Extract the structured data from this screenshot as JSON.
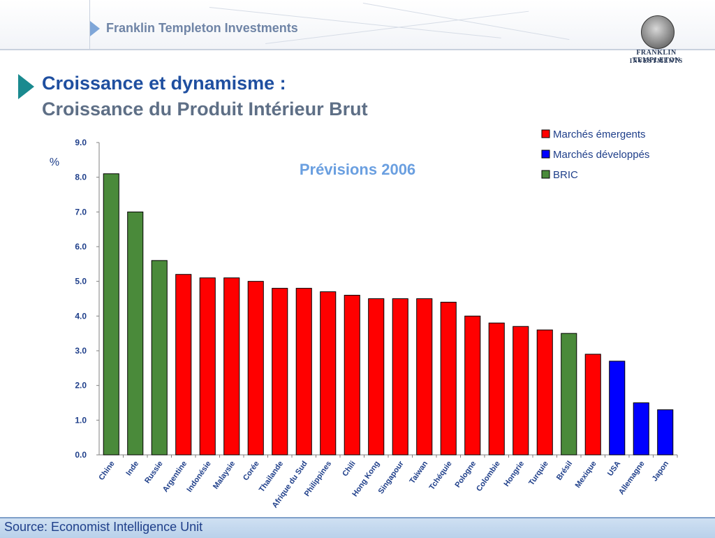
{
  "header": {
    "brand": "Franklin Templeton Investments",
    "logo_line1": "FRANKLIN TEMPLETON",
    "logo_line2": "INVESTMENTS"
  },
  "title": {
    "line1": "Croissance et dynamisme :",
    "line2": "Croissance du Produit Intérieur Brut"
  },
  "source": "Source: Economist Intelligence Unit",
  "colors": {
    "emerging": "#ff0000",
    "developed": "#0000ff",
    "bric": "#4a8a3a"
  },
  "chart_data": {
    "type": "bar",
    "subtitle": "Prévisions 2006",
    "ylabel": "%",
    "ylim": [
      0,
      9
    ],
    "yticks": [
      "0.0",
      "1.0",
      "2.0",
      "3.0",
      "4.0",
      "5.0",
      "6.0",
      "7.0",
      "8.0",
      "9.0"
    ],
    "legend_position": "top-right",
    "legend": [
      {
        "name": "Marchés émergents",
        "group": "emerging"
      },
      {
        "name": "Marchés développés",
        "group": "developed"
      },
      {
        "name": "BRIC",
        "group": "bric"
      }
    ],
    "categories": [
      "Chine",
      "Inde",
      "Russie",
      "Argentine",
      "Indonésie",
      "Malaysie",
      "Corée",
      "Thailande",
      "Afrique du Sud",
      "Philippines",
      "Chili",
      "Hong Kong",
      "Singapour",
      "Taiwan",
      "Tchéquie",
      "Pologne",
      "Colombie",
      "Hongrie",
      "Turquie",
      "Brésil",
      "Mexique",
      "USA",
      "Allemagne",
      "Japon"
    ],
    "values": [
      8.1,
      7.0,
      5.6,
      5.2,
      5.1,
      5.1,
      5.0,
      4.8,
      4.8,
      4.7,
      4.6,
      4.5,
      4.5,
      4.5,
      4.4,
      4.0,
      3.8,
      3.7,
      3.6,
      3.5,
      2.9,
      2.7,
      1.5,
      1.3
    ],
    "groups": [
      "bric",
      "bric",
      "bric",
      "emerging",
      "emerging",
      "emerging",
      "emerging",
      "emerging",
      "emerging",
      "emerging",
      "emerging",
      "emerging",
      "emerging",
      "emerging",
      "emerging",
      "emerging",
      "emerging",
      "emerging",
      "emerging",
      "bric",
      "emerging",
      "developed",
      "developed",
      "developed"
    ]
  }
}
